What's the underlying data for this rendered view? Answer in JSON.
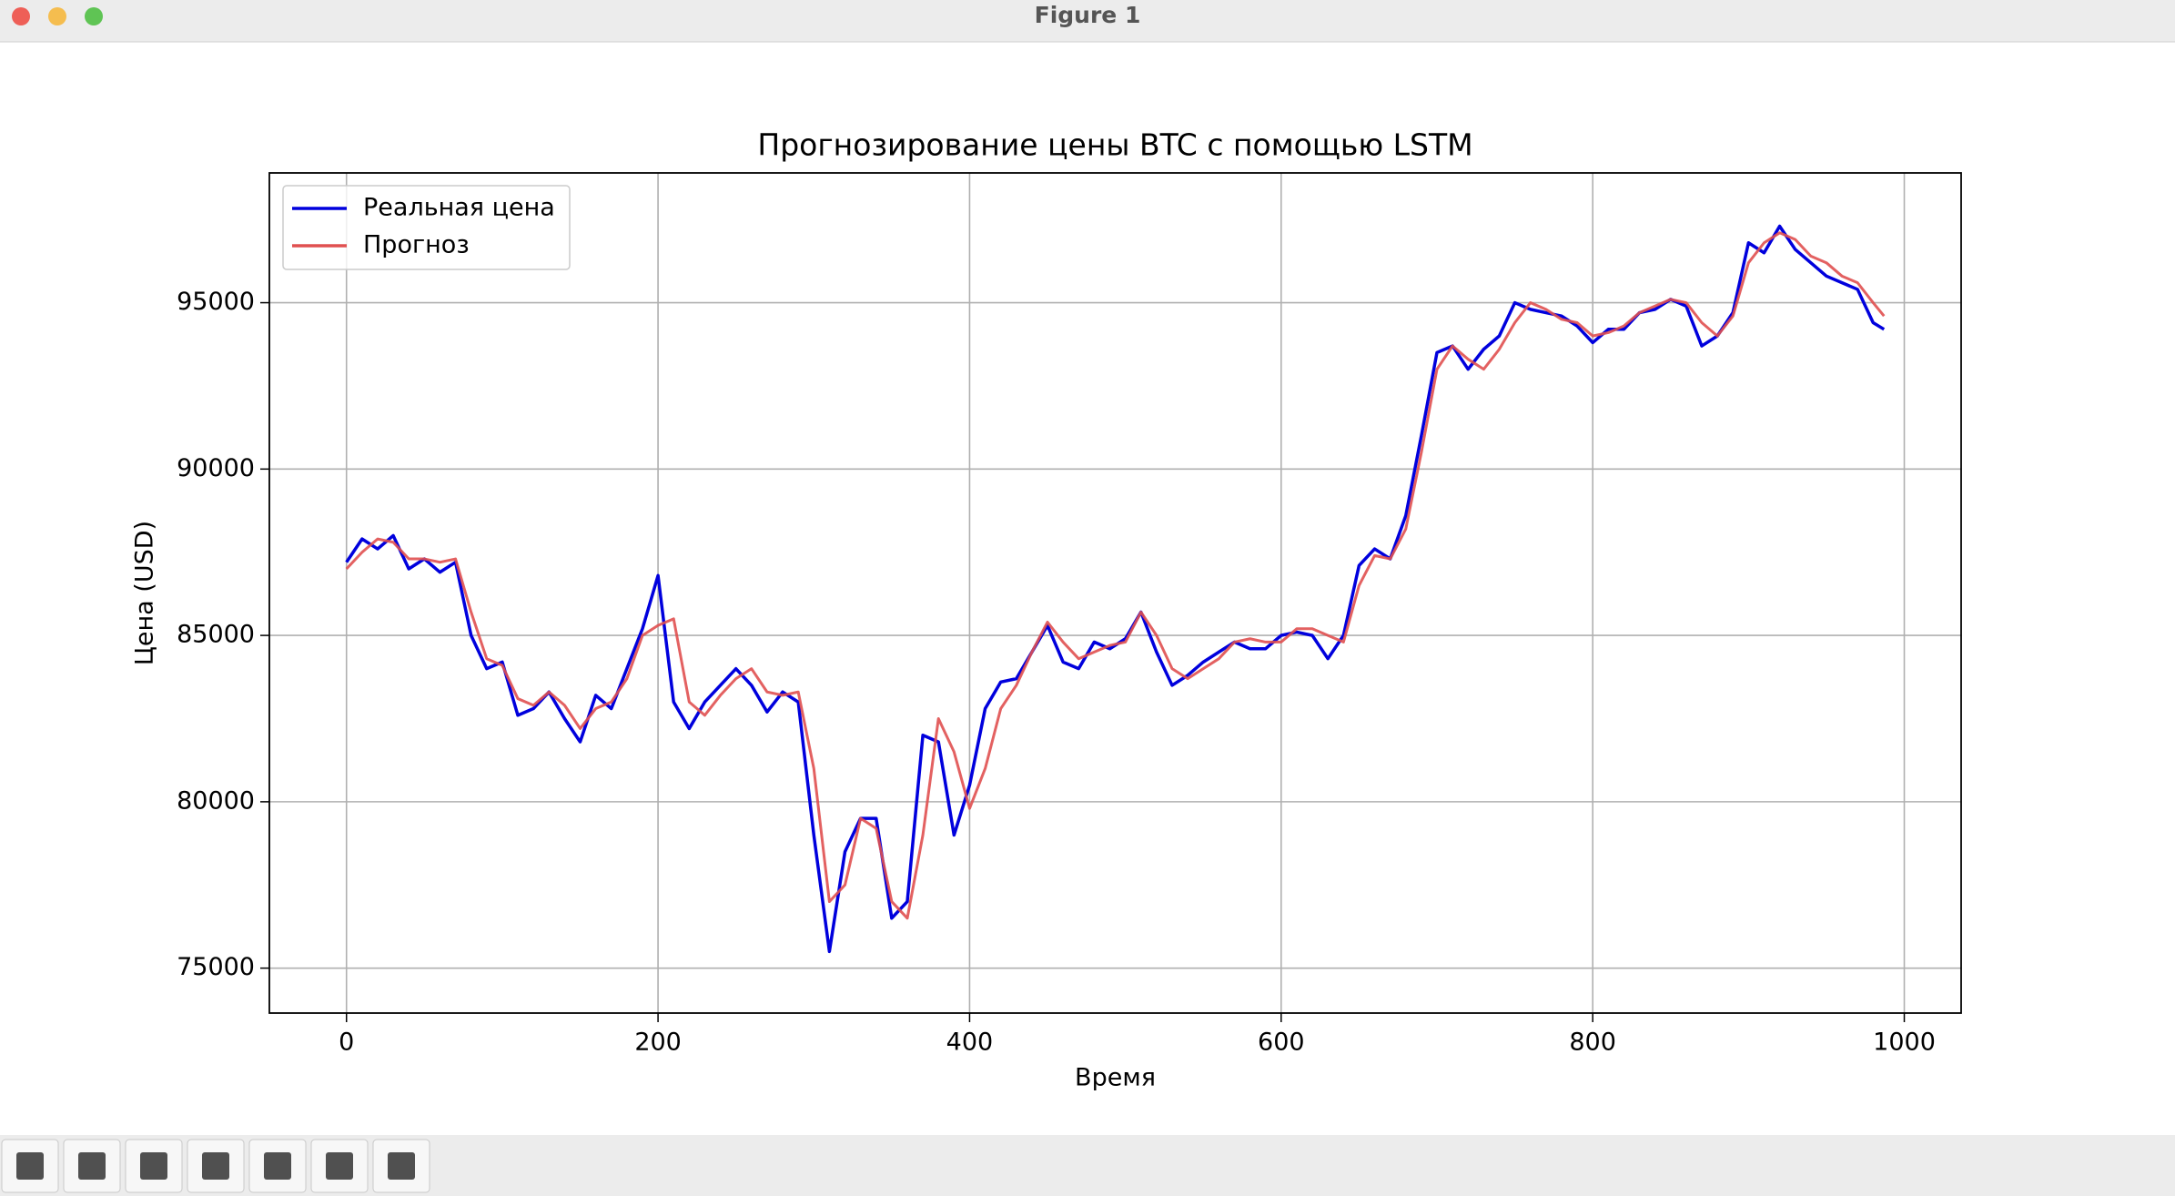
{
  "window": {
    "title": "Figure 1"
  },
  "chart_data": {
    "type": "line",
    "title": "Прогнозирование цены BTC с помощью LSTM",
    "xlabel": "Время",
    "ylabel": "Цена (USD)",
    "x": [
      0,
      10,
      20,
      30,
      40,
      50,
      60,
      70,
      80,
      90,
      100,
      110,
      120,
      130,
      140,
      150,
      160,
      170,
      180,
      190,
      200,
      210,
      220,
      230,
      240,
      250,
      260,
      270,
      280,
      290,
      300,
      310,
      320,
      330,
      340,
      350,
      360,
      370,
      380,
      390,
      400,
      410,
      420,
      430,
      440,
      450,
      460,
      470,
      480,
      490,
      500,
      510,
      520,
      530,
      540,
      550,
      560,
      570,
      580,
      590,
      600,
      610,
      620,
      630,
      640,
      650,
      660,
      670,
      680,
      690,
      700,
      710,
      720,
      730,
      740,
      750,
      760,
      770,
      780,
      790,
      800,
      810,
      820,
      830,
      840,
      850,
      860,
      870,
      880,
      890,
      900,
      910,
      920,
      930,
      940,
      950,
      960,
      970,
      980,
      987
    ],
    "series": [
      {
        "name": "Реальная цена",
        "color": "#0000dd",
        "values": [
          87200,
          87900,
          87600,
          88000,
          87000,
          87300,
          86900,
          87200,
          85000,
          84000,
          84200,
          82600,
          82800,
          83300,
          82500,
          81800,
          83200,
          82800,
          84000,
          85200,
          86800,
          83000,
          82200,
          83000,
          83500,
          84000,
          83500,
          82700,
          83300,
          83000,
          79000,
          75500,
          78500,
          79500,
          79500,
          76500,
          77000,
          82000,
          81800,
          79000,
          80500,
          82800,
          83600,
          83700,
          84500,
          85300,
          84200,
          84000,
          84800,
          84600,
          84900,
          85700,
          84500,
          83500,
          83800,
          84200,
          84500,
          84800,
          84600,
          84600,
          85000,
          85100,
          85000,
          84300,
          85000,
          87100,
          87600,
          87300,
          88600,
          91000,
          93500,
          93700,
          93000,
          93600,
          94000,
          95000,
          94800,
          94700,
          94600,
          94300,
          93800,
          94200,
          94200,
          94700,
          94800,
          95100,
          94900,
          93700,
          94000,
          94700,
          96800,
          96500,
          97300,
          96600,
          96200,
          95800,
          95600,
          95400,
          94400,
          94200
        ]
      },
      {
        "name": "Прогноз",
        "color": "#e05050",
        "values": [
          87000,
          87500,
          87900,
          87800,
          87300,
          87300,
          87200,
          87300,
          85700,
          84300,
          84100,
          83100,
          82900,
          83300,
          82900,
          82200,
          82800,
          83000,
          83700,
          85000,
          85300,
          85500,
          83000,
          82600,
          83200,
          83700,
          84000,
          83300,
          83200,
          83300,
          81000,
          77000,
          77500,
          79500,
          79200,
          77000,
          76500,
          79000,
          82500,
          81500,
          79800,
          81000,
          82800,
          83500,
          84500,
          85400,
          84800,
          84300,
          84500,
          84700,
          84800,
          85700,
          85000,
          84000,
          83700,
          84000,
          84300,
          84800,
          84900,
          84800,
          84800,
          85200,
          85200,
          85000,
          84800,
          86500,
          87400,
          87300,
          88200,
          90500,
          93000,
          93700,
          93300,
          93000,
          93600,
          94400,
          95000,
          94800,
          94500,
          94400,
          94000,
          94100,
          94300,
          94700,
          94900,
          95100,
          95000,
          94400,
          94000,
          94600,
          96200,
          96800,
          97100,
          96900,
          96400,
          96200,
          95800,
          95600,
          95000,
          94600
        ]
      }
    ],
    "xlim": [
      -49.5,
      1036.5
    ],
    "ylim": [
      73650,
      98900
    ],
    "xticks": [
      0,
      200,
      400,
      600,
      800,
      1000
    ],
    "yticks": [
      75000,
      80000,
      85000,
      90000,
      95000
    ],
    "grid": true,
    "legend": "upper left"
  }
}
